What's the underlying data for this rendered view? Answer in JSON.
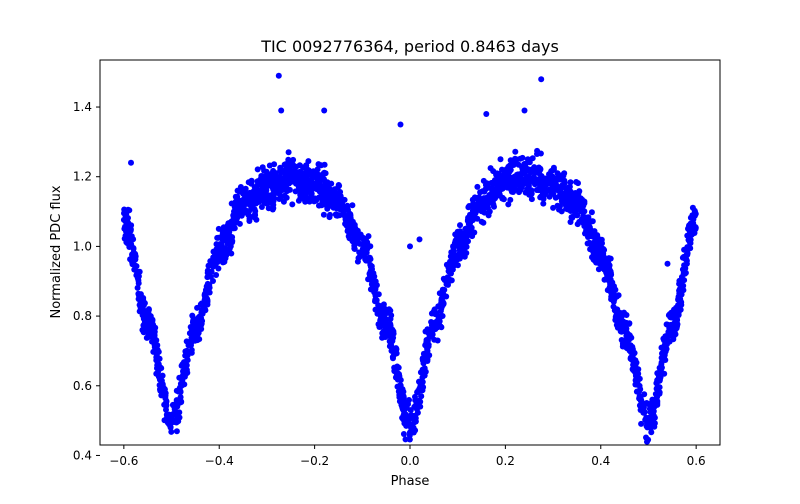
{
  "chart_data": {
    "type": "scatter",
    "title": "TIC 0092776364, period 0.8463 days",
    "xlabel": "Phase",
    "ylabel": "Normalized PDC flux",
    "xlim": [
      -0.65,
      0.65
    ],
    "ylim": [
      0.43,
      1.535
    ],
    "x_ticks": [
      -0.6,
      -0.4,
      -0.2,
      0.0,
      0.2,
      0.4,
      0.6
    ],
    "x_tick_labels": [
      "−0.6",
      "−0.4",
      "−0.2",
      "0.0",
      "0.2",
      "0.4",
      "0.6"
    ],
    "y_ticks": [
      0.4,
      0.6,
      0.8,
      1.0,
      1.2,
      1.4
    ],
    "y_tick_labels": [
      "0.4",
      "0.6",
      "0.8",
      "1.0",
      "1.2",
      "1.4"
    ],
    "grid": false,
    "marker_color": "#0000ff",
    "phase_range": [
      -0.6,
      0.6
    ],
    "light_curve_trend": {
      "phase": [
        -0.6,
        -0.55,
        -0.5,
        -0.45,
        -0.4,
        -0.35,
        -0.3,
        -0.25,
        -0.2,
        -0.15,
        -0.1,
        -0.05,
        0.0,
        0.05,
        0.1,
        0.15,
        0.2,
        0.25,
        0.3,
        0.35,
        0.4,
        0.45,
        0.5,
        0.55,
        0.6
      ],
      "flux": [
        1.08,
        0.78,
        0.5,
        0.76,
        0.98,
        1.12,
        1.17,
        1.19,
        1.18,
        1.13,
        1.0,
        0.77,
        0.48,
        0.77,
        1.0,
        1.13,
        1.19,
        1.2,
        1.18,
        1.12,
        0.98,
        0.76,
        0.5,
        0.78,
        1.08
      ]
    },
    "scatter_halfwidth": 0.05,
    "outliers": [
      {
        "x": -0.275,
        "y": 1.49
      },
      {
        "x": 0.275,
        "y": 1.48
      },
      {
        "x": -0.18,
        "y": 1.39
      },
      {
        "x": 0.24,
        "y": 1.39
      },
      {
        "x": -0.02,
        "y": 1.35
      },
      {
        "x": -0.27,
        "y": 1.39
      },
      {
        "x": 0.16,
        "y": 1.38
      },
      {
        "x": 0.0,
        "y": 1.0
      },
      {
        "x": 0.02,
        "y": 1.02
      },
      {
        "x": -0.585,
        "y": 1.24
      },
      {
        "x": 0.54,
        "y": 0.95
      }
    ]
  }
}
